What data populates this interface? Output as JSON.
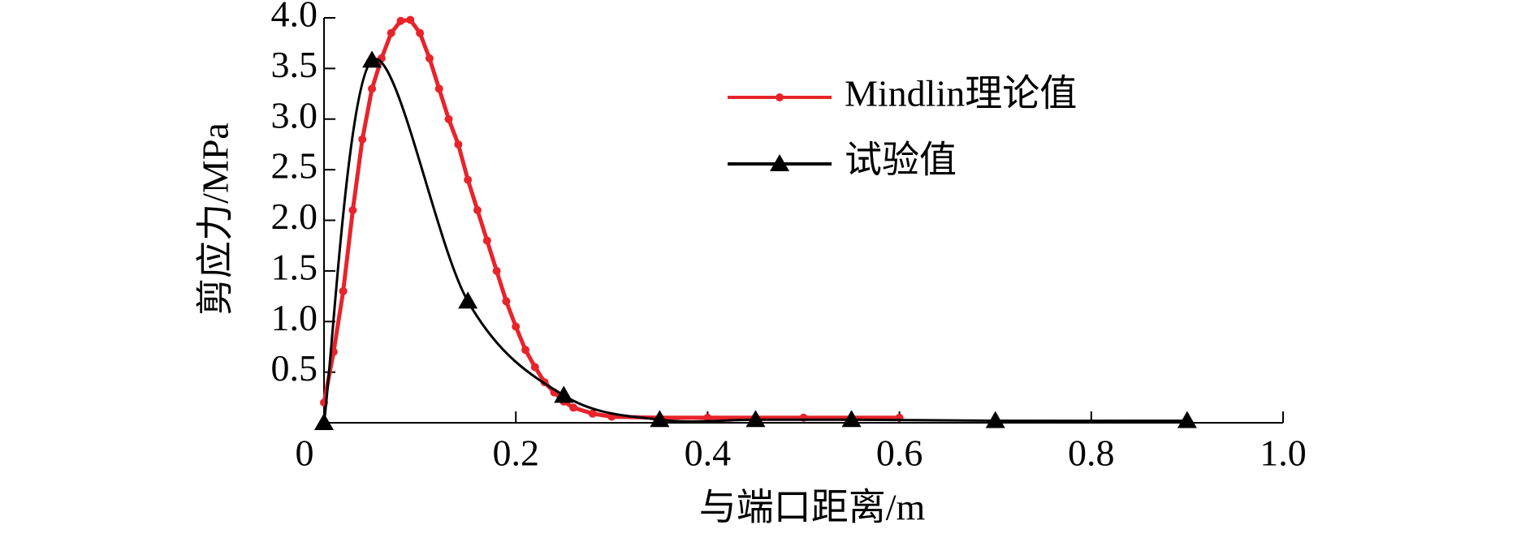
{
  "chart_data": {
    "type": "line",
    "xlabel": "与端口距离/m",
    "ylabel": "剪应力/MPa",
    "xlim": [
      0,
      1
    ],
    "ylim": [
      0,
      4
    ],
    "xticks": [
      0,
      0.2,
      0.4,
      0.6,
      0.8,
      {
        "value": 1,
        "label": "1.0"
      }
    ],
    "yticks": [
      0.5,
      {
        "value": 1,
        "label": "1.0"
      },
      1.5,
      {
        "value": 2,
        "label": "2.0"
      },
      2.5,
      {
        "value": 3,
        "label": "3.0"
      },
      3.5,
      {
        "value": 4,
        "label": "4.0"
      }
    ],
    "series": [
      {
        "name": "Mindlin理论值",
        "color": "#e8242a",
        "marker": "circle",
        "x": [
          0,
          0.01,
          0.02,
          0.03,
          0.04,
          0.05,
          0.06,
          0.07,
          0.08,
          0.09,
          0.1,
          0.11,
          0.12,
          0.13,
          0.14,
          0.15,
          0.16,
          0.17,
          0.18,
          0.19,
          0.2,
          0.21,
          0.22,
          0.23,
          0.24,
          0.25,
          0.26,
          0.28,
          0.3,
          0.35,
          0.4,
          0.45,
          0.5,
          0.55,
          0.6
        ],
        "values": [
          0.2,
          0.7,
          1.3,
          2.1,
          2.8,
          3.3,
          3.6,
          3.85,
          3.97,
          3.98,
          3.85,
          3.6,
          3.3,
          3.0,
          2.75,
          2.4,
          2.1,
          1.8,
          1.5,
          1.2,
          0.95,
          0.72,
          0.55,
          0.4,
          0.3,
          0.21,
          0.15,
          0.09,
          0.06,
          0.05,
          0.05,
          0.05,
          0.05,
          0.05,
          0.05
        ]
      },
      {
        "name": "试验值",
        "color": "#000000",
        "marker": "triangle",
        "x": [
          0,
          0.05,
          0.15,
          0.25,
          0.35,
          0.45,
          0.55,
          0.7,
          0.9
        ],
        "values": [
          0,
          3.58,
          1.2,
          0.27,
          0.03,
          0.03,
          0.03,
          0.02,
          0.02
        ]
      }
    ]
  }
}
